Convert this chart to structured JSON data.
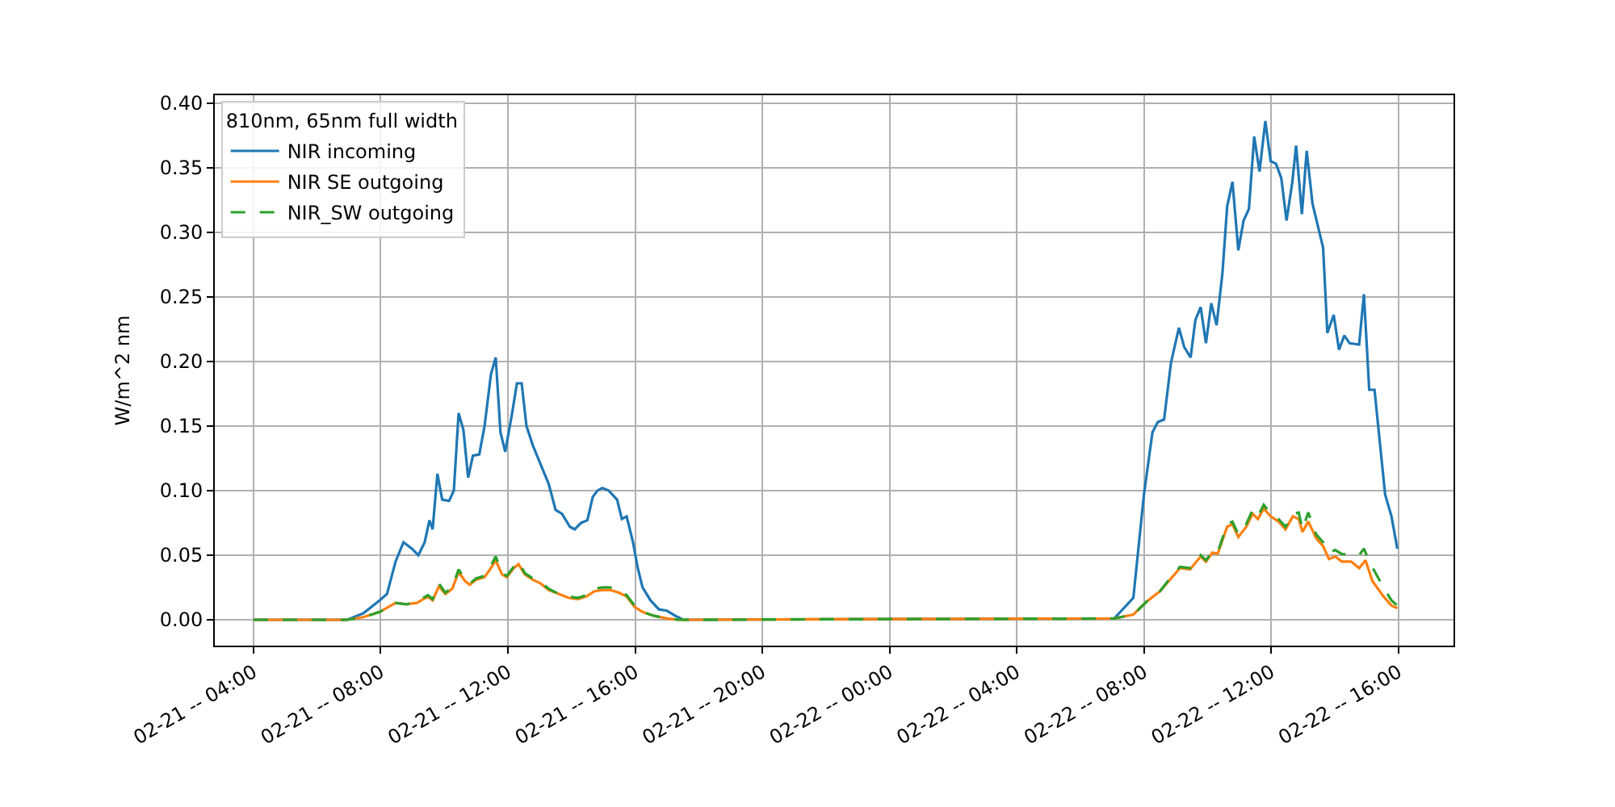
{
  "chart_data": {
    "type": "line",
    "ylabel": "W/m^2 nm",
    "legend_title": "810nm, 65nm full width",
    "legend": "top left",
    "grid": true,
    "xlim": [
      "--02-21T02:47",
      "--02-22T17:44"
    ],
    "ylim": [
      -0.02,
      0.406
    ],
    "xticks": [
      {
        "value": "--02-21T04:00",
        "label": "02-21 -- 04:00"
      },
      {
        "value": "--02-21T08:00",
        "label": "02-21 -- 08:00"
      },
      {
        "value": "--02-21T12:00",
        "label": "02-21 -- 12:00"
      },
      {
        "value": "--02-21T16:00",
        "label": "02-21 -- 16:00"
      },
      {
        "value": "--02-21T20:00",
        "label": "02-21 -- 20:00"
      },
      {
        "value": "--02-22T00:00",
        "label": "02-22 -- 00:00"
      },
      {
        "value": "--02-22T04:00",
        "label": "02-22 -- 04:00"
      },
      {
        "value": "--02-22T08:00",
        "label": "02-22 -- 08:00"
      },
      {
        "value": "--02-22T12:00",
        "label": "02-22 -- 12:00"
      },
      {
        "value": "--02-22T16:00",
        "label": "02-22 -- 16:00"
      }
    ],
    "yticks": [
      {
        "value": 0,
        "label": "0.00"
      },
      {
        "value": 0.05,
        "label": "0.05"
      },
      {
        "value": 0.1,
        "label": "0.10"
      },
      {
        "value": 0.15,
        "label": "0.15"
      },
      {
        "value": 0.2,
        "label": "0.20"
      },
      {
        "value": 0.25,
        "label": "0.25"
      },
      {
        "value": 0.3,
        "label": "0.30"
      },
      {
        "value": 0.35,
        "label": "0.35"
      },
      {
        "value": 0.4,
        "label": "0.40"
      }
    ],
    "series": [
      {
        "name": "NIR incoming",
        "color": "#1f77b4",
        "line_style": "solid",
        "x": [
          "--02-21T04:00",
          "--02-21T06:57",
          "--02-21T07:27",
          "--02-21T07:58",
          "--02-21T08:12",
          "--02-21T08:28",
          "--02-21T08:43",
          "--02-21T08:59",
          "--02-21T09:11",
          "--02-21T09:23",
          "--02-21T09:32",
          "--02-21T09:38",
          "--02-21T09:47",
          "--02-21T09:56",
          "--02-21T10:09",
          "--02-21T10:18",
          "--02-21T10:27",
          "--02-21T10:36",
          "--02-21T10:45",
          "--02-21T10:54",
          "--02-21T11:06",
          "--02-21T11:16",
          "--02-21T11:28",
          "--02-21T11:37",
          "--02-21T11:46",
          "--02-21T11:55",
          "--02-21T12:08",
          "--02-21T12:17",
          "--02-21T12:26",
          "--02-21T12:35",
          "--02-21T12:47",
          "--02-21T13:02",
          "--02-21T13:17",
          "--02-21T13:30",
          "--02-21T13:42",
          "--02-21T13:57",
          "--02-21T14:06",
          "--02-21T14:18",
          "--02-21T14:30",
          "--02-21T14:40",
          "--02-21T14:49",
          "--02-21T14:58",
          "--02-21T15:10",
          "--02-21T15:26",
          "--02-21T15:35",
          "--02-21T15:44",
          "--02-21T15:56",
          "--02-21T16:05",
          "--02-21T16:14",
          "--02-21T16:29",
          "--02-21T16:45",
          "--02-21T17:00",
          "--02-21T17:16",
          "--02-21T17:31",
          "--02-22T07:04",
          "--02-22T07:40",
          "--02-22T08:00",
          "--02-22T08:16",
          "--02-22T08:26",
          "--02-22T08:38",
          "--02-22T08:51",
          "--02-22T09:06",
          "--02-22T09:16",
          "--02-22T09:28",
          "--02-22T09:37",
          "--02-22T09:47",
          "--02-22T09:57",
          "--02-22T10:07",
          "--02-22T10:17",
          "--02-22T10:28",
          "--02-22T10:37",
          "--02-22T10:47",
          "--02-22T10:58",
          "--02-22T11:08",
          "--02-22T11:18",
          "--02-22T11:28",
          "--02-22T11:38",
          "--02-22T11:49",
          "--02-22T11:59",
          "--02-22T12:09",
          "--02-22T12:19",
          "--02-22T12:29",
          "--02-22T12:40",
          "--02-22T12:47",
          "--02-22T12:58",
          "--02-22T13:07",
          "--02-22T13:18",
          "--02-22T13:38",
          "--02-22T13:46",
          "--02-22T13:58",
          "--02-22T14:08",
          "--02-22T14:18",
          "--02-22T14:28",
          "--02-22T14:46",
          "--02-22T14:55",
          "--02-22T15:05",
          "--02-22T15:15",
          "--02-22T15:35",
          "--02-22T15:47",
          "--02-22T15:58"
        ],
        "values": [
          0,
          0,
          0.005,
          0.015,
          0.02,
          0.045,
          0.06,
          0.055,
          0.05,
          0.06,
          0.077,
          0.07,
          0.113,
          0.093,
          0.092,
          0.1,
          0.16,
          0.147,
          0.11,
          0.127,
          0.128,
          0.15,
          0.19,
          0.203,
          0.145,
          0.13,
          0.16,
          0.183,
          0.183,
          0.15,
          0.135,
          0.12,
          0.105,
          0.085,
          0.082,
          0.072,
          0.07,
          0.075,
          0.077,
          0.095,
          0.1,
          0.102,
          0.1,
          0.093,
          0.078,
          0.08,
          0.06,
          0.04,
          0.025,
          0.015,
          0.008,
          0.007,
          0.003,
          0,
          0.001,
          0.017,
          0.097,
          0.145,
          0.153,
          0.155,
          0.199,
          0.226,
          0.211,
          0.203,
          0.232,
          0.242,
          0.214,
          0.245,
          0.228,
          0.268,
          0.32,
          0.339,
          0.286,
          0.309,
          0.318,
          0.374,
          0.347,
          0.386,
          0.355,
          0.353,
          0.342,
          0.309,
          0.339,
          0.367,
          0.314,
          0.363,
          0.322,
          0.288,
          0.222,
          0.236,
          0.209,
          0.22,
          0.214,
          0.213,
          0.252,
          0.178,
          0.178,
          0.097,
          0.08,
          0.055
        ]
      },
      {
        "name": "NIR SE outgoing",
        "color": "#ff7f0e",
        "line_style": "solid",
        "x": [
          "--02-21T04:00",
          "--02-21T06:57",
          "--02-21T07:27",
          "--02-21T07:58",
          "--02-21T08:28",
          "--02-21T08:49",
          "--02-21T09:08",
          "--02-21T09:29",
          "--02-21T09:38",
          "--02-21T09:50",
          "--02-21T10:02",
          "--02-21T10:15",
          "--02-21T10:27",
          "--02-21T10:39",
          "--02-21T10:48",
          "--02-21T11:00",
          "--02-21T11:16",
          "--02-21T11:28",
          "--02-21T11:37",
          "--02-21T11:49",
          "--02-21T11:58",
          "--02-21T12:11",
          "--02-21T12:20",
          "--02-21T12:32",
          "--02-21T12:47",
          "--02-21T13:02",
          "--02-21T13:17",
          "--02-21T13:36",
          "--02-21T13:54",
          "--02-21T14:12",
          "--02-21T14:28",
          "--02-21T14:43",
          "--02-21T14:58",
          "--02-21T15:13",
          "--02-21T15:29",
          "--02-21T15:44",
          "--02-21T15:59",
          "--02-21T16:14",
          "--02-21T16:36",
          "--02-21T17:00",
          "--02-21T17:22",
          "--02-22T07:04",
          "--02-22T07:40",
          "--02-22T08:05",
          "--02-22T08:30",
          "--02-22T08:51",
          "--02-22T09:08",
          "--02-22T09:27",
          "--02-22T09:47",
          "--02-22T09:57",
          "--02-22T10:09",
          "--02-22T10:19",
          "--02-22T10:37",
          "--02-22T10:47",
          "--02-22T10:58",
          "--02-22T11:13",
          "--02-22T11:25",
          "--02-22T11:35",
          "--02-22T11:46",
          "--02-22T11:59",
          "--02-22T12:14",
          "--02-22T12:27",
          "--02-22T12:41",
          "--02-22T12:52",
          "--02-22T12:59",
          "--02-22T13:10",
          "--02-22T13:25",
          "--02-22T13:38",
          "--02-22T13:49",
          "--02-22T14:01",
          "--02-22T14:13",
          "--02-22T14:31",
          "--02-22T14:46",
          "--02-22T14:58",
          "--02-22T15:11",
          "--02-22T15:32",
          "--02-22T15:47",
          "--02-22T15:58"
        ],
        "values": [
          0,
          0,
          0.002,
          0.006,
          0.013,
          0.012,
          0.013,
          0.018,
          0.015,
          0.026,
          0.02,
          0.024,
          0.037,
          0.03,
          0.027,
          0.031,
          0.033,
          0.04,
          0.046,
          0.035,
          0.033,
          0.04,
          0.043,
          0.035,
          0.031,
          0.028,
          0.023,
          0.02,
          0.017,
          0.016,
          0.018,
          0.022,
          0.023,
          0.023,
          0.021,
          0.018,
          0.01,
          0.006,
          0.003,
          0.001,
          0,
          0.001,
          0.004,
          0.014,
          0.022,
          0.032,
          0.04,
          0.039,
          0.049,
          0.045,
          0.052,
          0.051,
          0.072,
          0.074,
          0.064,
          0.072,
          0.082,
          0.078,
          0.086,
          0.08,
          0.076,
          0.07,
          0.08,
          0.078,
          0.068,
          0.076,
          0.063,
          0.057,
          0.047,
          0.049,
          0.045,
          0.045,
          0.04,
          0.046,
          0.03,
          0.018,
          0.011,
          0.009
        ]
      },
      {
        "name": "NIR_SW outgoing",
        "color": "#2ca02c",
        "line_style": "dashed",
        "x": [
          "--02-21T04:00",
          "--02-21T06:57",
          "--02-21T07:27",
          "--02-21T07:58",
          "--02-21T08:28",
          "--02-21T08:49",
          "--02-21T09:08",
          "--02-21T09:29",
          "--02-21T09:38",
          "--02-21T09:50",
          "--02-21T10:02",
          "--02-21T10:15",
          "--02-21T10:27",
          "--02-21T10:39",
          "--02-21T10:48",
          "--02-21T11:00",
          "--02-21T11:16",
          "--02-21T11:28",
          "--02-21T11:37",
          "--02-21T11:49",
          "--02-21T11:58",
          "--02-21T12:11",
          "--02-21T12:20",
          "--02-21T12:32",
          "--02-21T12:47",
          "--02-21T13:02",
          "--02-21T13:17",
          "--02-21T13:36",
          "--02-21T13:54",
          "--02-21T14:12",
          "--02-21T14:28",
          "--02-21T14:43",
          "--02-21T14:58",
          "--02-21T15:13",
          "--02-21T15:29",
          "--02-21T15:44",
          "--02-21T15:59",
          "--02-21T16:14",
          "--02-21T16:36",
          "--02-21T17:00",
          "--02-21T17:22",
          "--02-22T07:04",
          "--02-22T07:40",
          "--02-22T08:05",
          "--02-22T08:30",
          "--02-22T08:51",
          "--02-22T09:08",
          "--02-22T09:27",
          "--02-22T09:47",
          "--02-22T09:57",
          "--02-22T10:09",
          "--02-22T10:19",
          "--02-22T10:37",
          "--02-22T10:47",
          "--02-22T10:58",
          "--02-22T11:13",
          "--02-22T11:25",
          "--02-22T11:35",
          "--02-22T11:46",
          "--02-22T11:59",
          "--02-22T12:14",
          "--02-22T12:27",
          "--02-22T12:41",
          "--02-22T12:52",
          "--02-22T12:59",
          "--02-22T13:10",
          "--02-22T13:25",
          "--02-22T13:38",
          "--02-22T13:49",
          "--02-22T14:01",
          "--02-22T14:13",
          "--02-22T14:31",
          "--02-22T14:46",
          "--02-22T14:55",
          "--02-22T15:05",
          "--02-22T15:32",
          "--02-22T15:47",
          "--02-22T15:58"
        ],
        "values": [
          0,
          0,
          0.002,
          0.006,
          0.013,
          0.012,
          0.014,
          0.019,
          0.016,
          0.028,
          0.021,
          0.025,
          0.039,
          0.031,
          0.028,
          0.032,
          0.034,
          0.042,
          0.049,
          0.036,
          0.034,
          0.041,
          0.045,
          0.036,
          0.032,
          0.029,
          0.024,
          0.02,
          0.018,
          0.017,
          0.019,
          0.024,
          0.025,
          0.025,
          0.023,
          0.019,
          0.011,
          0.006,
          0.003,
          0.001,
          0,
          0.001,
          0.004,
          0.014,
          0.022,
          0.033,
          0.041,
          0.04,
          0.05,
          0.046,
          0.053,
          0.052,
          0.074,
          0.076,
          0.066,
          0.074,
          0.085,
          0.08,
          0.089,
          0.082,
          0.078,
          0.072,
          0.082,
          0.083,
          0.07,
          0.083,
          0.066,
          0.06,
          0.052,
          0.054,
          0.051,
          0.05,
          0.05,
          0.055,
          0.045,
          0.025,
          0.015,
          0.011
        ]
      }
    ]
  }
}
